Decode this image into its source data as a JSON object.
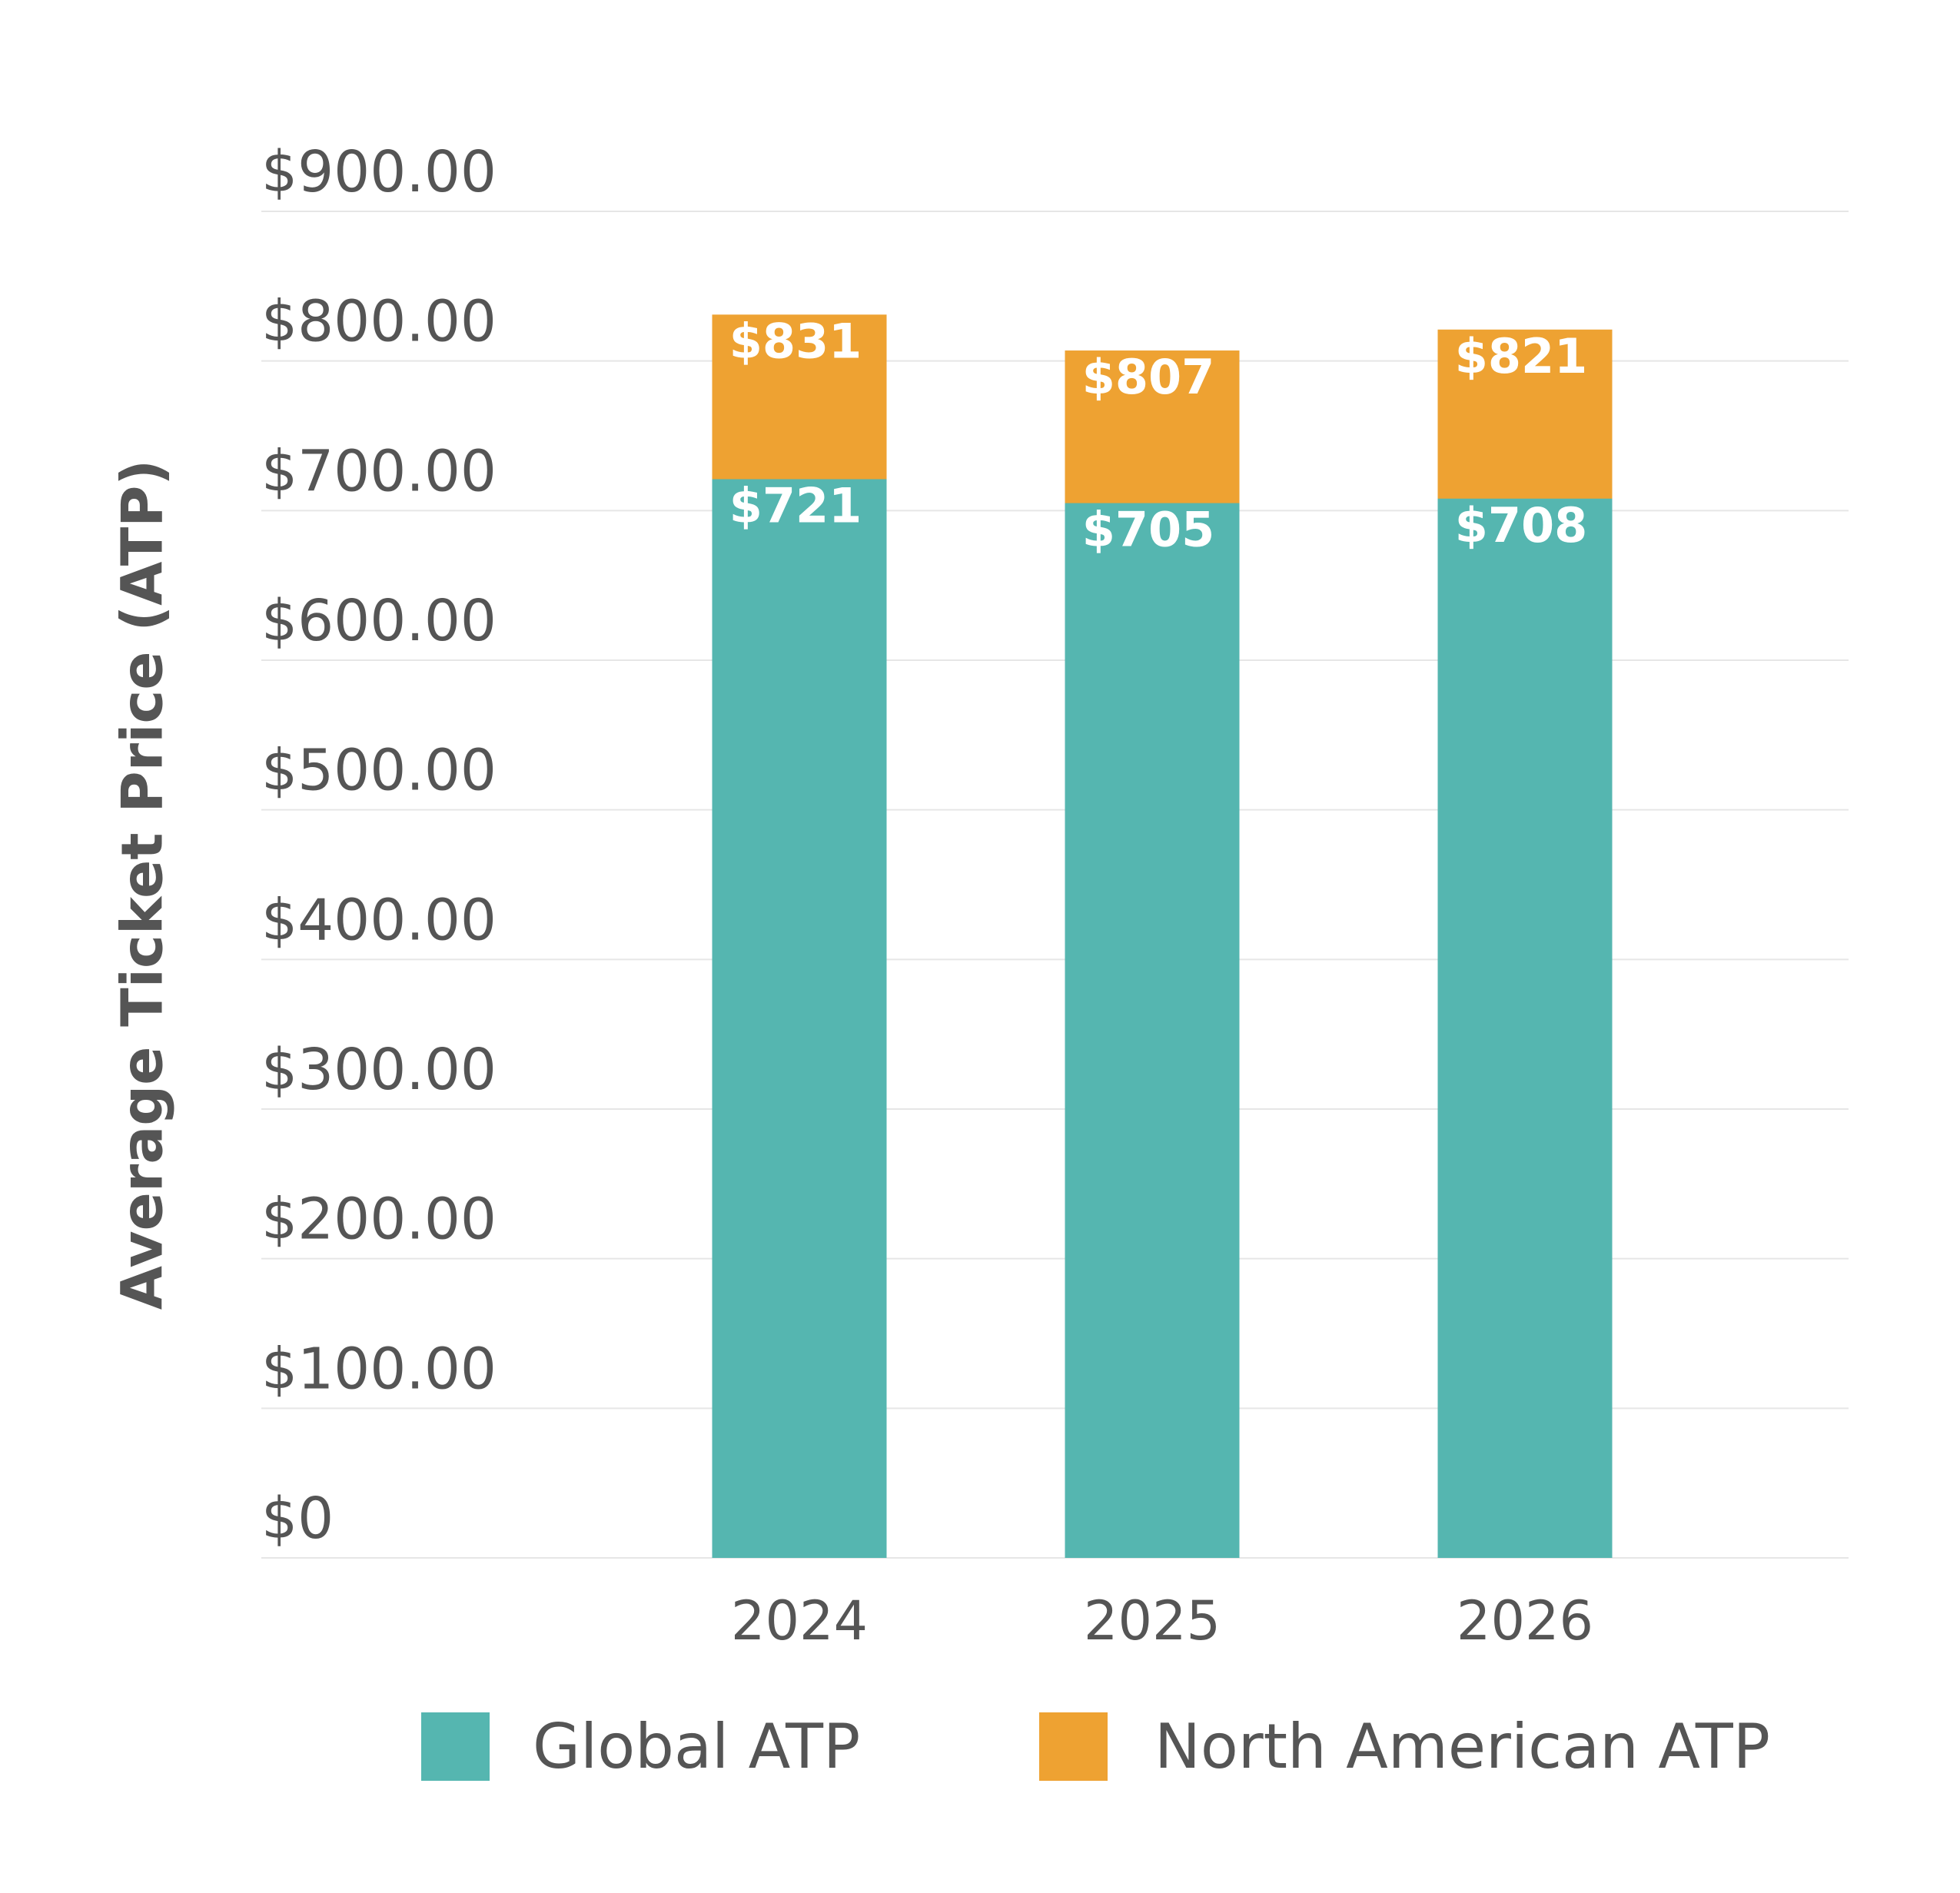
{
  "chart_data": {
    "type": "bar",
    "y_label": "Average Ticket Price (ATP)",
    "categories": [
      "2024",
      "2025",
      "2026"
    ],
    "series": [
      {
        "name": "Global ATP",
        "color": "#55b6b0",
        "values": [
          721,
          705,
          708
        ],
        "value_labels": [
          "$721",
          "$705",
          "$708"
        ]
      },
      {
        "name": "North American ATP",
        "color": "#eea232",
        "values": [
          831,
          807,
          821
        ],
        "value_labels": [
          "$831",
          "$807",
          "$821"
        ]
      }
    ],
    "ylim": [
      0,
      900
    ],
    "yticks": [
      {
        "value": 0,
        "label": "$0"
      },
      {
        "value": 100,
        "label": "$100.00"
      },
      {
        "value": 200,
        "label": "$200.00"
      },
      {
        "value": 300,
        "label": "$300.00"
      },
      {
        "value": 400,
        "label": "$400.00"
      },
      {
        "value": 500,
        "label": "$500.00"
      },
      {
        "value": 600,
        "label": "$600.00"
      },
      {
        "value": 700,
        "label": "$700.00"
      },
      {
        "value": 800,
        "label": "$800.00"
      },
      {
        "value": 900,
        "label": "$900.00"
      }
    ],
    "grid": true,
    "legend": "bottom"
  }
}
